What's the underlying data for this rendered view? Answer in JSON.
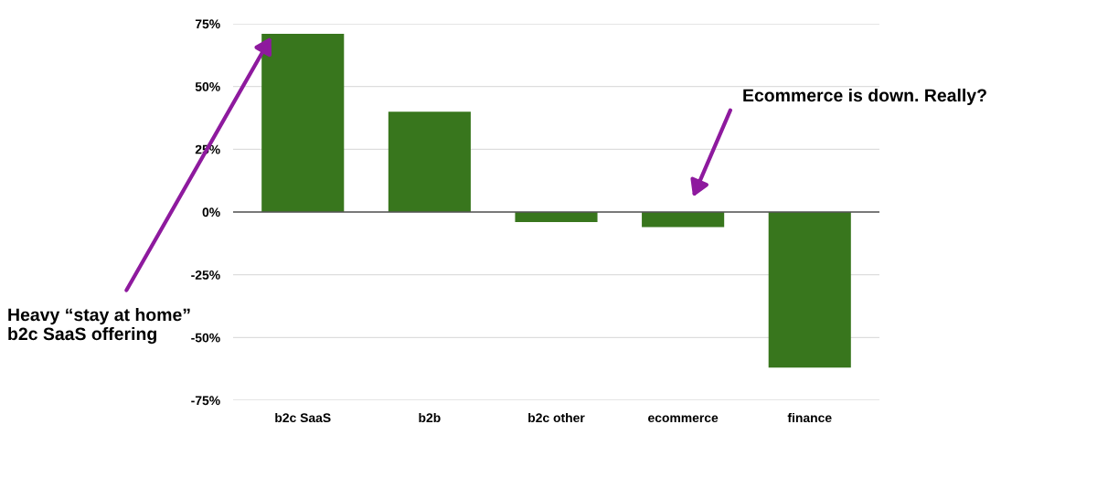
{
  "chart_data": {
    "type": "bar",
    "categories": [
      "b2c SaaS",
      "b2b",
      "b2c other",
      "ecommerce",
      "finance"
    ],
    "values": [
      71,
      40,
      -4,
      -6,
      -62
    ],
    "color": "#38761d",
    "ylim": [
      -75,
      75
    ],
    "yticks": [
      {
        "value": -75,
        "label": "-75%"
      },
      {
        "value": -50,
        "label": "-50%"
      },
      {
        "value": -25,
        "label": "-25%"
      },
      {
        "value": 0,
        "label": "0%"
      },
      {
        "value": 25,
        "label": "25%"
      },
      {
        "value": 50,
        "label": "50%"
      },
      {
        "value": 75,
        "label": "75%"
      }
    ],
    "grid": "y",
    "annotations": [
      "Heavy “stay at home”\nb2c SaaS offering",
      "Ecommerce is down. Really?"
    ]
  }
}
